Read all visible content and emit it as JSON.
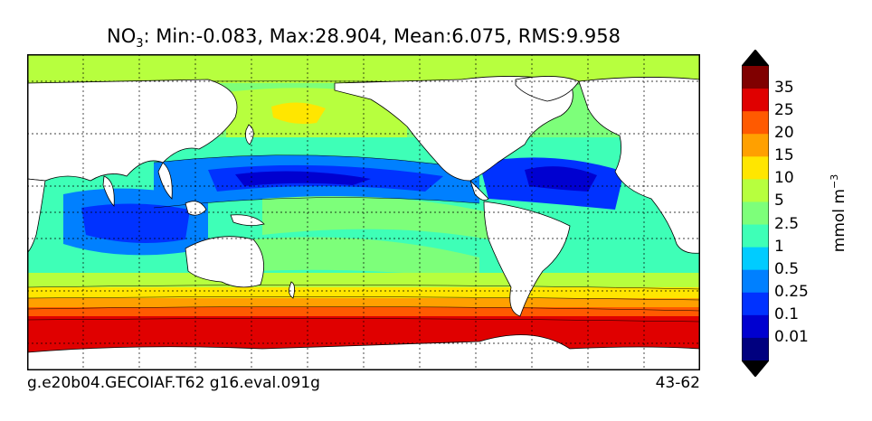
{
  "title": {
    "variable": "NO",
    "subscript": "3",
    "stats": ": Min:-0.083, Max:28.904, Mean:6.075, RMS:9.958"
  },
  "footer": {
    "case_name": "g.e20b04.GECOIAF.T62 g16.eval.091g",
    "years": "43-62"
  },
  "colorbar": {
    "units_main": "mmol m",
    "units_exp": "−3",
    "ticks": [
      "35",
      "25",
      "20",
      "15",
      "10",
      "5",
      "2.5",
      "1",
      "0.5",
      "0.25",
      "0.1",
      "0.01"
    ],
    "colors": [
      "#00007f",
      "#0000d0",
      "#0032ff",
      "#0080ff",
      "#00ccff",
      "#3effb7",
      "#7dff7a",
      "#b7ff3e",
      "#ffe600",
      "#ffa000",
      "#ff5a00",
      "#e00000",
      "#800000"
    ],
    "extend": "both"
  },
  "map": {
    "land_color": "#ffffff",
    "grid": true
  }
}
